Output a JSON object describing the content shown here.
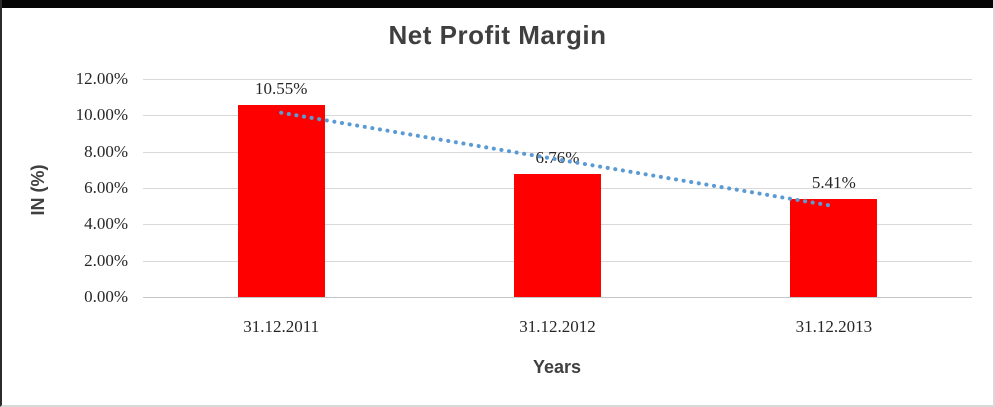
{
  "chart_data": {
    "type": "bar",
    "title": "Net Profit Margin",
    "categories": [
      "31.12.2011",
      "31.12.2012",
      "31.12.2013"
    ],
    "values": [
      10.55,
      6.76,
      5.41
    ],
    "data_labels": [
      "10.55%",
      "6.76%",
      "5.41%"
    ],
    "xlabel": "Years",
    "ylabel": "IN (%)",
    "ylim": [
      0,
      12
    ],
    "y_ticks": [
      {
        "value": 0,
        "label": "0.00%"
      },
      {
        "value": 2,
        "label": "2.00%"
      },
      {
        "value": 4,
        "label": "4.00%"
      },
      {
        "value": 6,
        "label": "6.00%"
      },
      {
        "value": 8,
        "label": "8.00%"
      },
      {
        "value": 10,
        "label": "10.00%"
      },
      {
        "value": 12,
        "label": "12.00%"
      }
    ],
    "grid": true,
    "legend": false,
    "bar_color": "#FF0000",
    "trendline": {
      "type": "linear",
      "style": "dotted",
      "color": "#5B9BD5"
    }
  }
}
